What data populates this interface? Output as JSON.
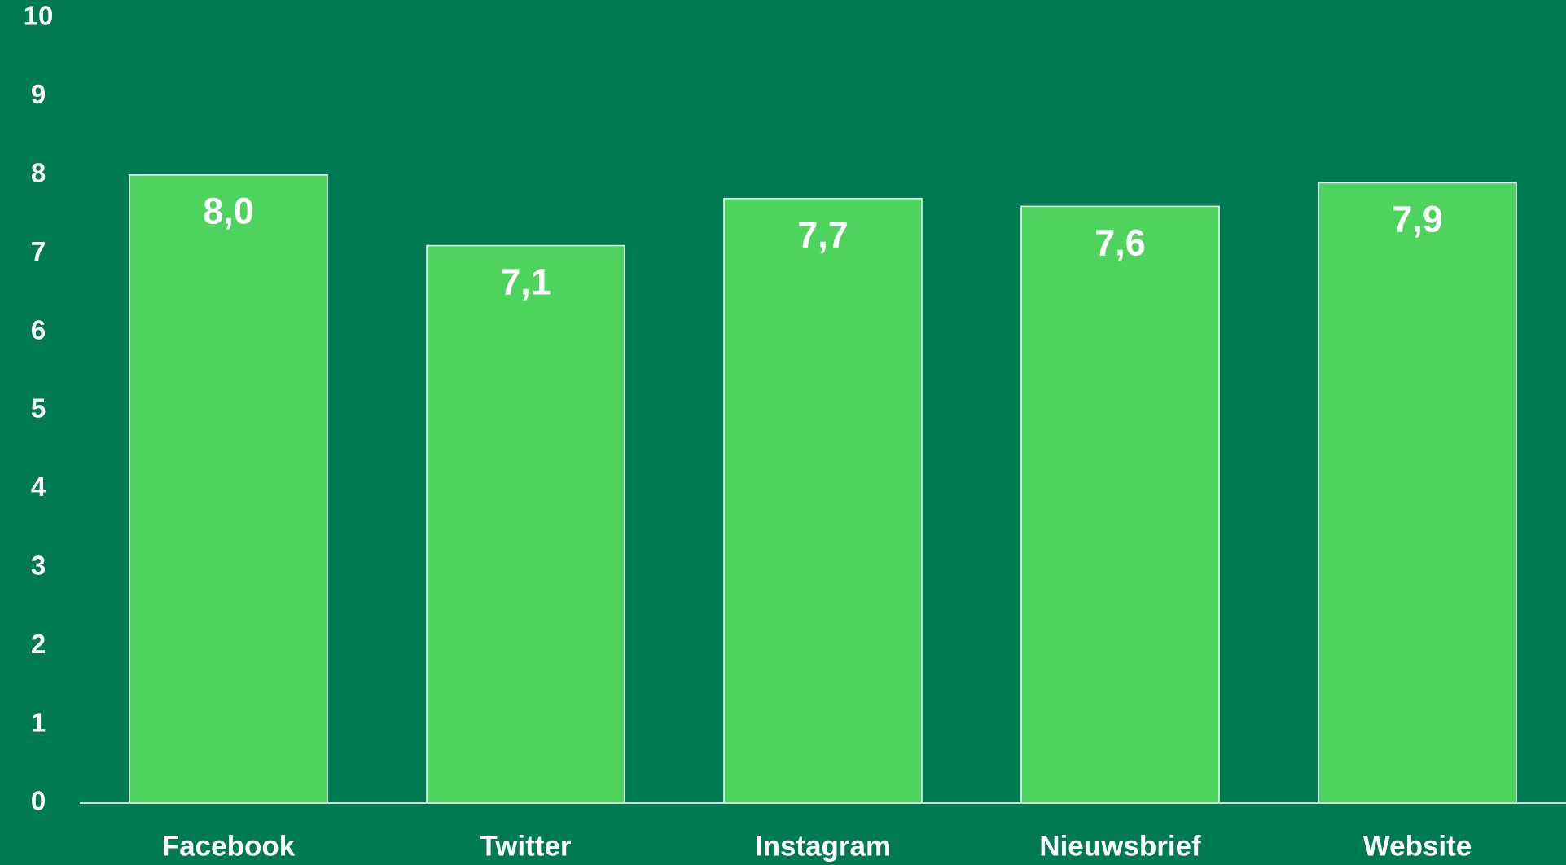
{
  "chart_data": {
    "type": "bar",
    "categories": [
      "Facebook",
      "Twitter",
      "Instagram",
      "Nieuwsbrief",
      "Website"
    ],
    "values": [
      8.0,
      7.1,
      7.7,
      7.6,
      7.9
    ],
    "value_labels": [
      "8,0",
      "7,1",
      "7,7",
      "7,6",
      "7,9"
    ],
    "color": "#4fd35f",
    "ylim": [
      0,
      10
    ],
    "yticks": [
      0,
      1,
      2,
      3,
      4,
      5,
      6,
      7,
      8,
      9,
      10
    ],
    "grid": false
  }
}
